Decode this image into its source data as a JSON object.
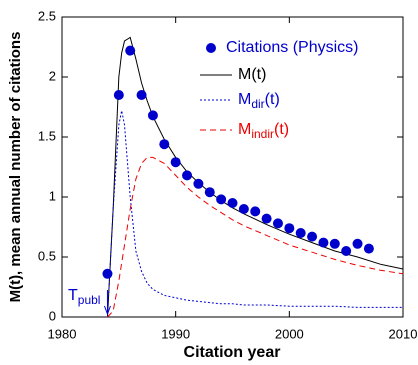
{
  "chart_data": {
    "type": "line",
    "ylabel": "M(t), mean annual number of citations",
    "xlabel": "Citation year",
    "xlim": [
      1980,
      2010
    ],
    "xticks": [
      1980,
      1990,
      2000,
      2010
    ],
    "ylim": [
      0,
      2.5
    ],
    "yticks": [
      0,
      0.5,
      1,
      1.5,
      2,
      2.5
    ],
    "annotation": [
      "T",
      "publ"
    ],
    "annotation_x": 1984,
    "points": {
      "name": "Citations (Physics)",
      "color": "#0000cc",
      "x": [
        1984,
        1985,
        1986,
        1987,
        1988,
        1989,
        1990,
        1991,
        1992,
        1993,
        1994,
        1995,
        1996,
        1997,
        1998,
        1999,
        2000,
        2001,
        2002,
        2003,
        2004,
        2005,
        2006,
        2007
      ],
      "values": [
        0.36,
        1.85,
        2.22,
        1.85,
        1.68,
        1.44,
        1.29,
        1.18,
        1.11,
        1.04,
        0.98,
        0.95,
        0.9,
        0.88,
        0.82,
        0.78,
        0.74,
        0.7,
        0.67,
        0.62,
        0.61,
        0.55,
        0.61,
        0.57
      ]
    },
    "x": [
      1984,
      1984.5,
      1985,
      1985.25,
      1985.5,
      1986,
      1986.5,
      1987,
      1987.5,
      1988,
      1989,
      1990,
      1991,
      1992,
      1993,
      1994,
      1995,
      1996,
      1998,
      2000,
      2002,
      2004,
      2006,
      2008,
      2010
    ],
    "series": [
      {
        "name": "M(t)",
        "color": "#000000",
        "dash": "none",
        "values": [
          0,
          0.9,
          2.0,
          2.2,
          2.3,
          2.33,
          2.15,
          1.95,
          1.8,
          1.67,
          1.48,
          1.33,
          1.21,
          1.12,
          1.04,
          0.97,
          0.91,
          0.86,
          0.77,
          0.69,
          0.62,
          0.55,
          0.5,
          0.44,
          0.4
        ]
      },
      {
        "name": [
          "M",
          "dir",
          "(t)"
        ],
        "color": "#0000cc",
        "dash": "2 2",
        "values": [
          0,
          0.9,
          1.6,
          1.72,
          1.6,
          1.0,
          0.55,
          0.38,
          0.28,
          0.23,
          0.18,
          0.16,
          0.14,
          0.13,
          0.12,
          0.11,
          0.11,
          0.1,
          0.1,
          0.09,
          0.09,
          0.09,
          0.08,
          0.08,
          0.08
        ]
      },
      {
        "name": [
          "M",
          "indir",
          "(t)"
        ],
        "color": "#ee0000",
        "dash": "6 4",
        "values": [
          0,
          0.05,
          0.3,
          0.45,
          0.6,
          0.9,
          1.15,
          1.28,
          1.33,
          1.33,
          1.28,
          1.18,
          1.08,
          1.0,
          0.93,
          0.87,
          0.81,
          0.76,
          0.68,
          0.6,
          0.54,
          0.48,
          0.43,
          0.39,
          0.36
        ]
      }
    ]
  }
}
